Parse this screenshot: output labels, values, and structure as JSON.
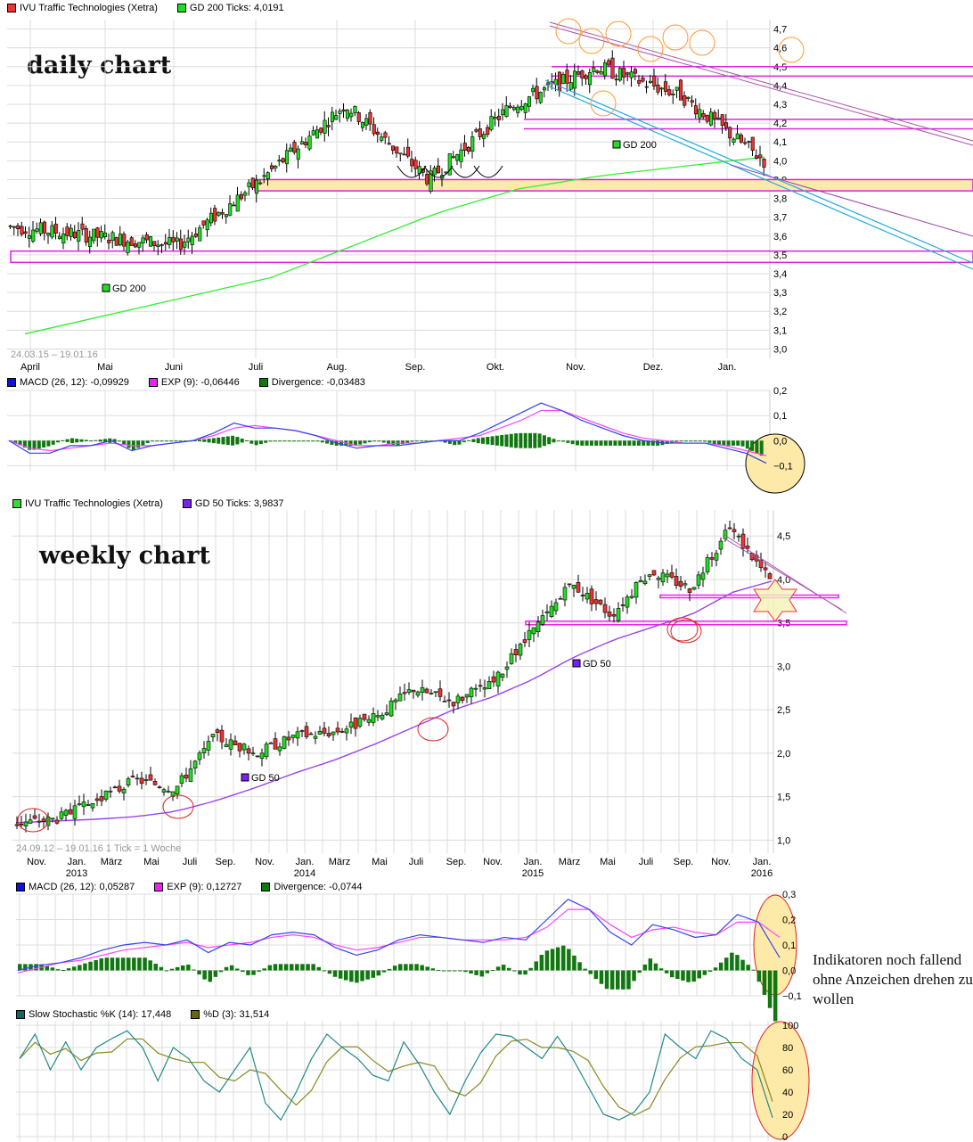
{
  "daily": {
    "annotation": "daily chart",
    "legend": [
      {
        "label": "IVU Traffic Technologies (Xetra)",
        "color": "#ee3333"
      },
      {
        "label": "GD 200 Ticks: 4,0191",
        "color": "#22dd22"
      }
    ],
    "date_range": "24.03.15 – 19.01.16",
    "gd_label": "GD 200",
    "macd_legend": [
      {
        "label": "MACD (26, 12): -0,09929",
        "color": "#1111dd"
      },
      {
        "label": "EXP (9): -0,06446",
        "color": "#ee22ee"
      },
      {
        "label": "Divergence: -0,03483",
        "color": "#117711"
      }
    ]
  },
  "weekly": {
    "annotation": "weekly chart",
    "legend": [
      {
        "label": "IVU Traffic Technologies (Xetra)",
        "color": "#33dd33"
      },
      {
        "label": "GD 50 Ticks: 3,9837",
        "color": "#7722ee"
      }
    ],
    "date_range": "24.09.12 – 19.01.16   1 Tick = 1 Woche",
    "gd_label": "GD 50",
    "macd_legend": [
      {
        "label": "MACD (26, 12): 0,05287",
        "color": "#1111dd"
      },
      {
        "label": "EXP (9): 0,12727",
        "color": "#ee22ee"
      },
      {
        "label": "Divergence: -0,0744",
        "color": "#117711"
      }
    ],
    "stoch_legend": [
      {
        "label": "Slow Stochastic %K (14): 17,448",
        "color": "#116666"
      },
      {
        "label": "%D (3): 31,514",
        "color": "#666611"
      }
    ]
  },
  "comment": "Indikatoren noch fallend ohne Anzeichen drehen zu wollen",
  "chart_data": [
    {
      "type": "candlestick",
      "title": "IVU Traffic Technologies (Xetra) – daily chart",
      "date_range": "24.03.15 – 19.01.16",
      "x_ticks": [
        "April",
        "Mai",
        "Juni",
        "Juli",
        "Aug.",
        "Sep.",
        "Okt.",
        "Nov.",
        "Dez.",
        "Jan."
      ],
      "y_ticks": [
        3.0,
        3.1,
        3.2,
        3.3,
        3.4,
        3.5,
        3.6,
        3.7,
        3.8,
        3.9,
        4.0,
        4.1,
        4.2,
        4.3,
        4.4,
        4.5,
        4.6,
        4.7
      ],
      "ylim": [
        2.95,
        4.75
      ],
      "monthly_approx_close": {
        "April": 3.65,
        "Mai": 3.6,
        "Juni": 3.55,
        "Juli": 3.9,
        "Aug.": 4.3,
        "Sep.": 3.9,
        "Okt.": 4.3,
        "Nov.": 4.5,
        "Dez.": 4.35,
        "Jan.": 4.0
      },
      "gd200": {
        "start": 3.08,
        "end": 4.02,
        "last_value": 4.0191
      },
      "support_lines": [
        3.5,
        3.85,
        3.9,
        4.18,
        4.23,
        4.45,
        4.5
      ],
      "series": [
        {
          "name": "Close",
          "x": [
            "Apr",
            "Mai",
            "Jun",
            "Jul",
            "Aug",
            "Sep",
            "Okt",
            "Nov",
            "Dez",
            "Jan"
          ],
          "values": [
            3.65,
            3.6,
            3.55,
            3.9,
            4.3,
            3.9,
            4.3,
            4.5,
            4.35,
            4.0
          ]
        },
        {
          "name": "GD 200",
          "x": [
            "Apr",
            "Mai",
            "Jun",
            "Jul",
            "Aug",
            "Sep",
            "Okt",
            "Nov",
            "Dez",
            "Jan"
          ],
          "values": [
            3.08,
            3.18,
            3.28,
            3.38,
            3.55,
            3.72,
            3.85,
            3.92,
            3.97,
            4.02
          ]
        }
      ]
    },
    {
      "type": "line",
      "title": "MACD daily",
      "y_ticks": [
        -0.1,
        0.0,
        0.1,
        0.2
      ],
      "ylim": [
        -0.12,
        0.2
      ],
      "series": [
        {
          "name": "MACD (26, 12)",
          "last": -0.09929
        },
        {
          "name": "EXP (9)",
          "last": -0.06446
        },
        {
          "name": "Divergence",
          "last": -0.03483
        }
      ]
    },
    {
      "type": "candlestick",
      "title": "IVU Traffic Technologies (Xetra) – weekly chart",
      "date_range": "24.09.12 – 19.01.16",
      "x_ticks": [
        "Nov.",
        "Jan. 2013",
        "März",
        "Mai",
        "Juli",
        "Sep.",
        "Nov.",
        "Jan. 2014",
        "März",
        "Mai",
        "Juli",
        "Sep.",
        "Nov.",
        "Jan. 2015",
        "März",
        "Mai",
        "Juli",
        "Sep.",
        "Nov.",
        "Jan. 2016"
      ],
      "y_ticks": [
        1.0,
        1.5,
        2.0,
        2.5,
        3.0,
        3.5,
        4.0,
        4.5
      ],
      "ylim": [
        0.85,
        4.8
      ],
      "gd50": {
        "last_value": 3.9837
      },
      "support_lines": [
        3.5,
        3.8
      ],
      "series": [
        {
          "name": "Close",
          "x": [
            "Nov12",
            "Jan13",
            "Mär13",
            "Mai13",
            "Jul13",
            "Sep13",
            "Nov13",
            "Jan14",
            "Mär14",
            "Mai14",
            "Jul14",
            "Sep14",
            "Nov14",
            "Jan15",
            "Mär15",
            "Mai15",
            "Jul15",
            "Sep15",
            "Nov15",
            "Jan16"
          ],
          "values": [
            1.2,
            1.25,
            1.45,
            1.7,
            1.6,
            2.2,
            2.0,
            2.2,
            2.25,
            2.4,
            2.75,
            2.6,
            2.8,
            3.4,
            3.95,
            3.6,
            4.1,
            3.9,
            4.6,
            4.0
          ]
        },
        {
          "name": "GD 50",
          "x": [
            "Nov12",
            "Jan13",
            "Mär13",
            "Mai13",
            "Jul13",
            "Sep13",
            "Nov13",
            "Jan14",
            "Mär14",
            "Mai14",
            "Jul14",
            "Sep14",
            "Nov14",
            "Jan15",
            "Mär15",
            "Mai15",
            "Jul15",
            "Sep15",
            "Nov15",
            "Jan16"
          ],
          "values": [
            1.2,
            1.22,
            1.24,
            1.27,
            1.33,
            1.45,
            1.6,
            1.77,
            1.92,
            2.1,
            2.3,
            2.5,
            2.65,
            2.85,
            3.1,
            3.3,
            3.45,
            3.6,
            3.85,
            3.98
          ]
        }
      ]
    },
    {
      "type": "line",
      "title": "MACD weekly",
      "y_ticks": [
        -0.1,
        0.0,
        0.1,
        0.2,
        0.3
      ],
      "ylim": [
        -0.1,
        0.3
      ],
      "series": [
        {
          "name": "MACD (26, 12)",
          "last": 0.05287
        },
        {
          "name": "EXP (9)",
          "last": 0.12727
        },
        {
          "name": "Divergence",
          "last": -0.0744
        }
      ]
    },
    {
      "type": "line",
      "title": "Slow Stochastic weekly",
      "y_ticks": [
        0,
        20,
        40,
        60,
        80,
        100
      ],
      "ylim": [
        0,
        100
      ],
      "series": [
        {
          "name": "Slow Stochastic %K (14)",
          "last": 17.448
        },
        {
          "name": "%D (3)",
          "last": 31.514
        }
      ]
    }
  ]
}
